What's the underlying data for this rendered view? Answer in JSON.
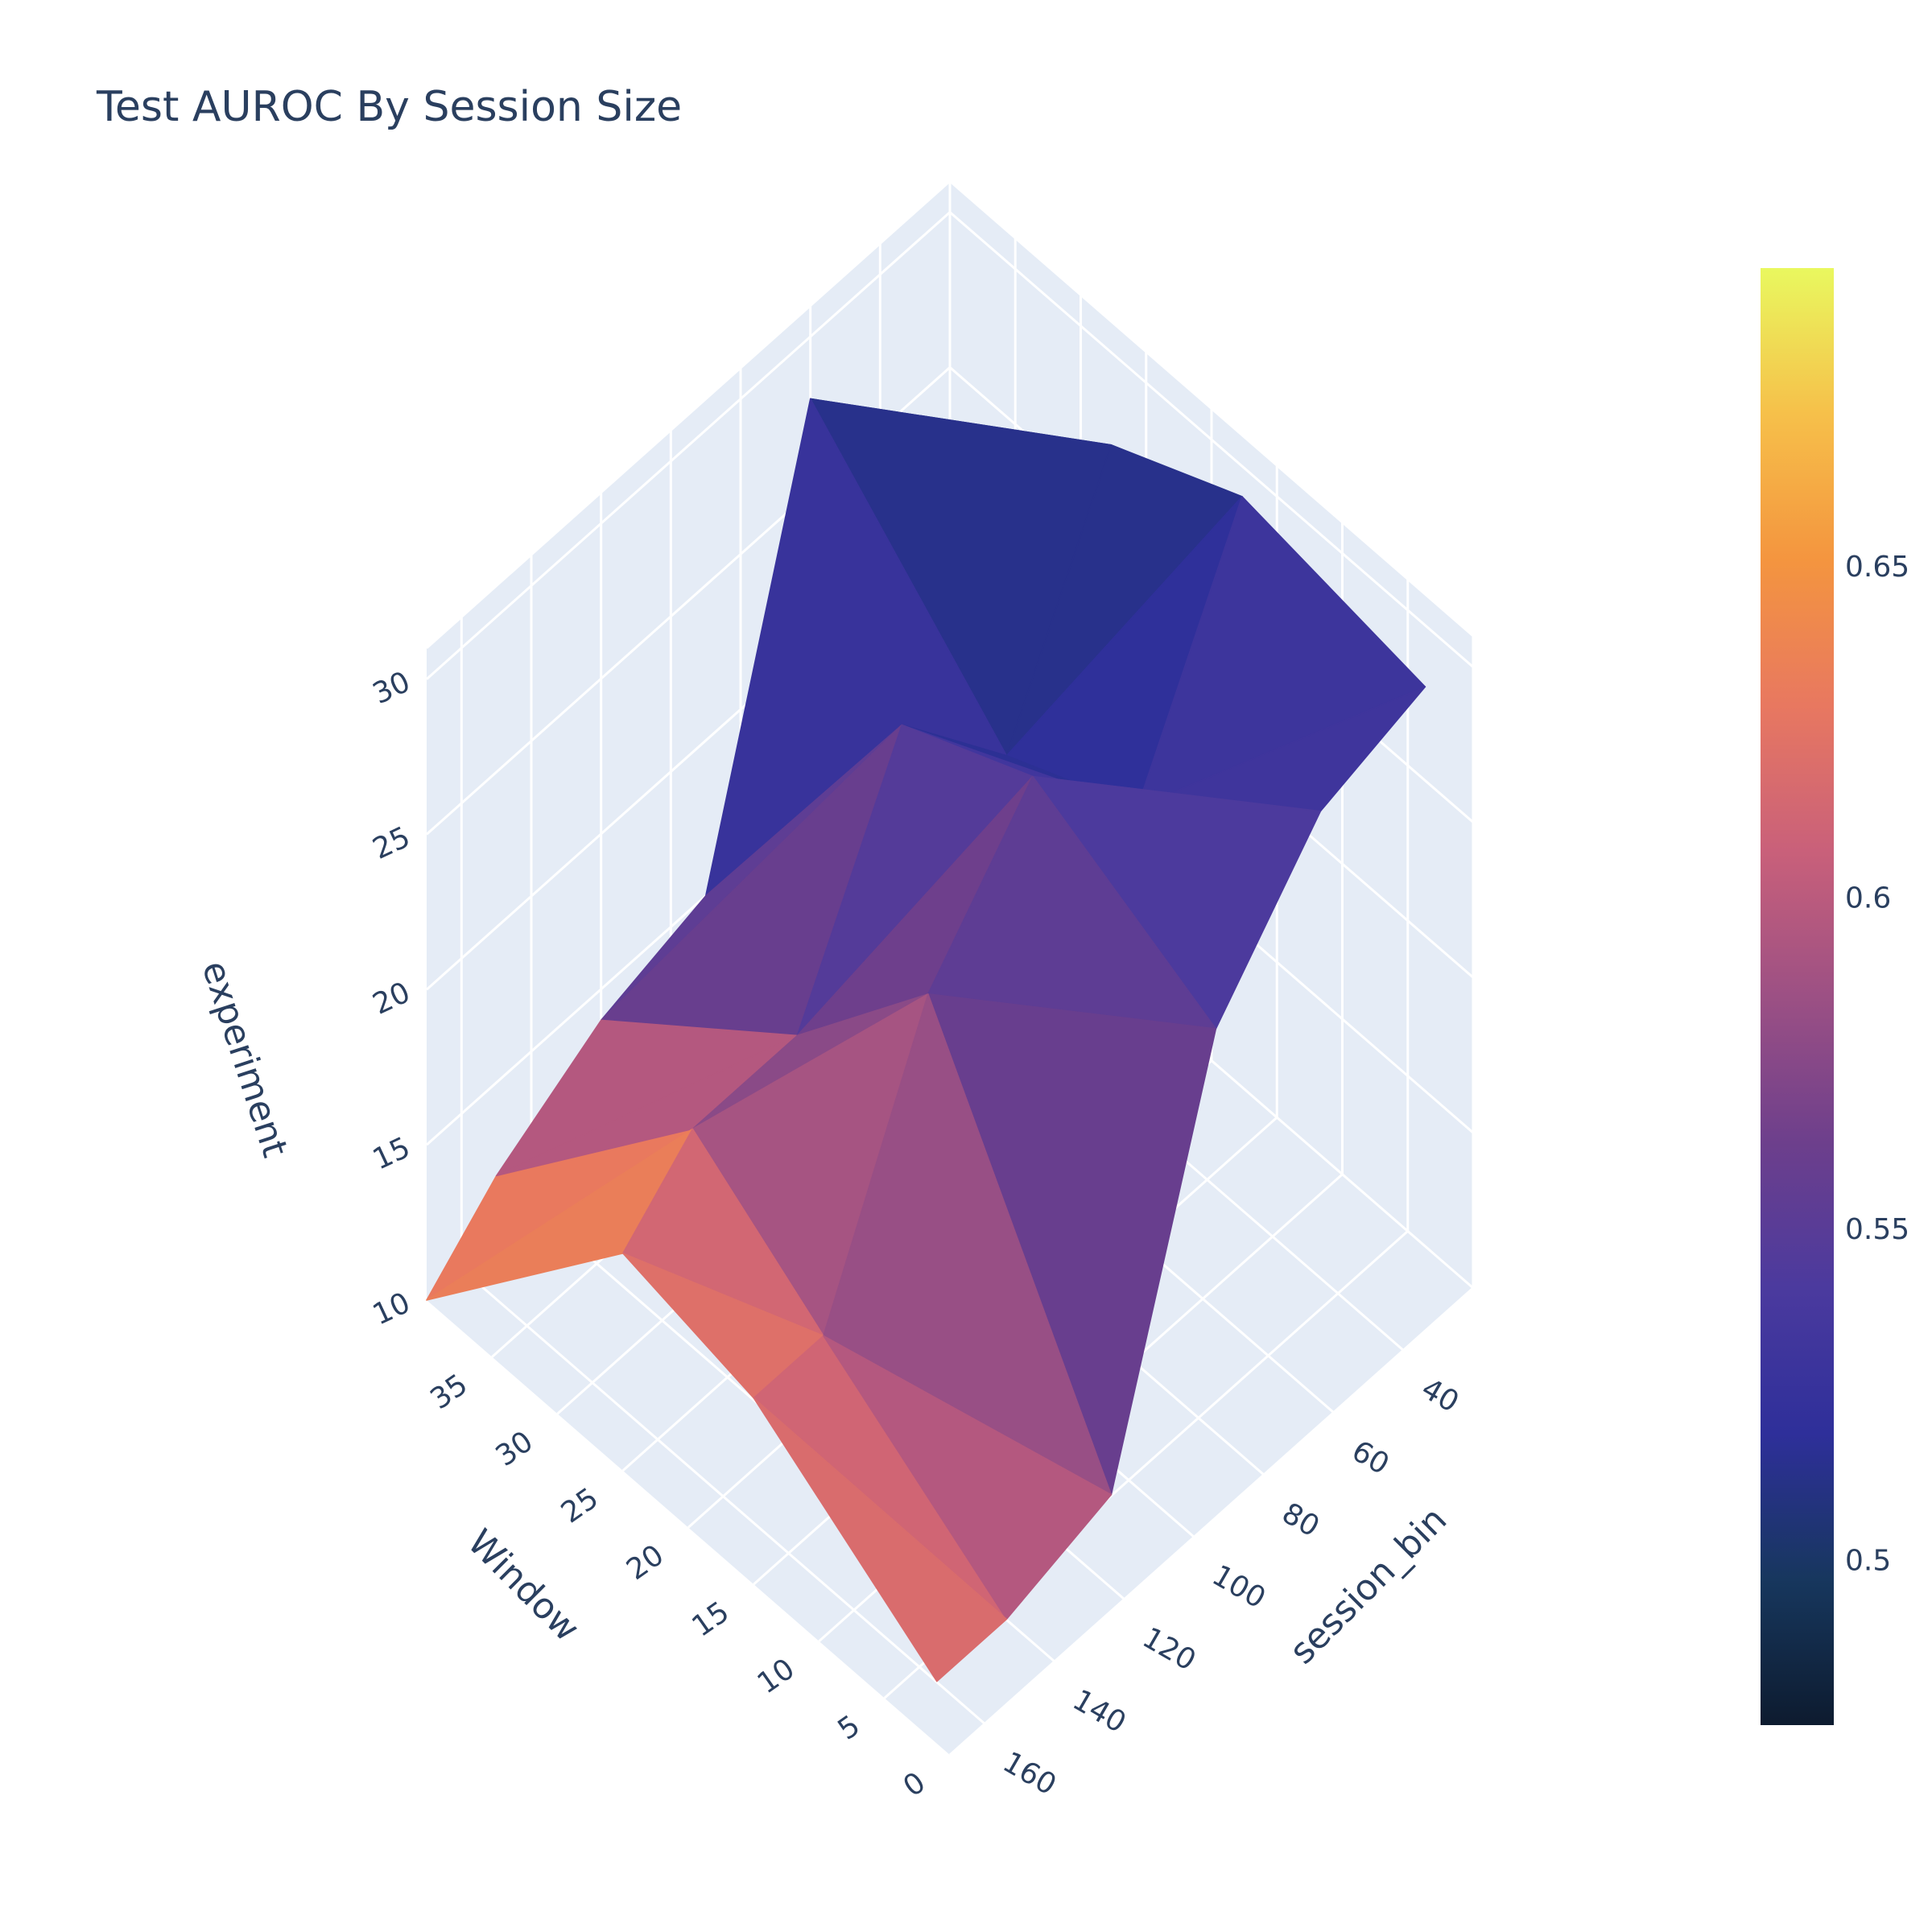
{
  "chart_data": {
    "type": "surface",
    "title": "Test AUROC By Session Size",
    "x_axis": {
      "title": "Window",
      "range": [
        0,
        40
      ],
      "ticks": [
        0,
        5,
        10,
        15,
        20,
        25,
        30,
        35
      ]
    },
    "y_axis": {
      "title": "session_bin",
      "range": [
        20,
        170
      ],
      "ticks": [
        40,
        60,
        80,
        100,
        120,
        140,
        160
      ]
    },
    "z_axis": {
      "title": "experiment",
      "range": [
        10,
        31
      ],
      "ticks": [
        10,
        15,
        20,
        25,
        30
      ]
    },
    "colorbar": {
      "range": [
        0.475,
        0.695
      ],
      "ticks": [
        0.5,
        0.55,
        0.6,
        0.65
      ],
      "tick_labels": [
        "0.5",
        "0.55",
        "0.6",
        "0.65"
      ],
      "colorscale": [
        "#0d1b2f",
        "#17375e",
        "#2e2f9a",
        "#4b3a9e",
        "#6d3f8c",
        "#9c5084",
        "#c9607a",
        "#e87860",
        "#f4953f",
        "#f6c04a",
        "#e9f85f"
      ]
    },
    "windows": [
      1,
      15,
      25,
      40
    ],
    "session_bins": [
      30,
      60,
      90,
      120,
      150,
      170
    ],
    "experiment_height": [
      [
        30,
        29,
        25,
        13,
        12,
        12
      ],
      [
        31,
        24,
        28,
        24,
        16,
        16
      ],
      [
        29,
        22,
        26,
        19,
        19,
        17
      ],
      [
        23,
        28,
        15,
        14,
        12,
        10
      ]
    ],
    "auroc": [
      [
        0.54,
        0.535,
        0.53,
        0.58,
        0.61,
        0.62
      ],
      [
        0.53,
        0.52,
        0.56,
        0.57,
        0.6,
        0.625
      ],
      [
        0.5,
        0.51,
        0.52,
        0.56,
        0.6,
        0.64
      ],
      [
        0.51,
        0.53,
        0.54,
        0.6,
        0.63,
        0.66
      ]
    ]
  }
}
